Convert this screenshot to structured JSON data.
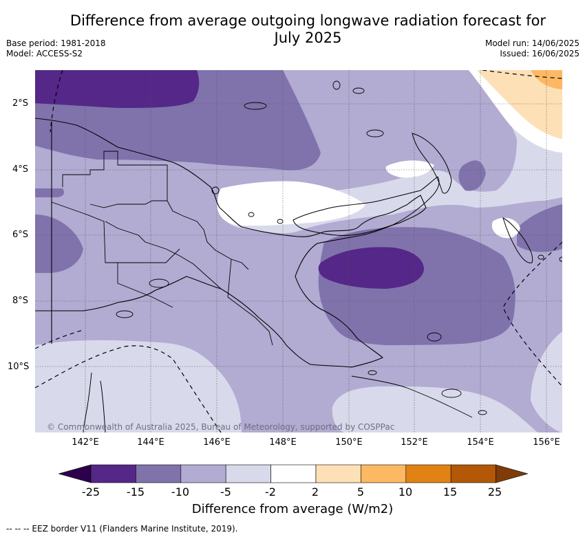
{
  "title_line1": "Difference from average outgoing longwave radiation forecast for",
  "title_line2": "July 2025",
  "base_period": "Base period: 1981-2018",
  "model": "Model: ACCESS-S2",
  "model_run": "Model run: 14/06/2025",
  "issued": "Issued: 16/06/2025",
  "copyright": "© Commonwealth of Australia 2025, Bureau of Meteorology, supported by COSPPac",
  "lat_labels": [
    "2°S",
    "4°S",
    "6°S",
    "8°S",
    "10°S"
  ],
  "lon_labels": [
    "142°E",
    "144°E",
    "146°E",
    "148°E",
    "150°E",
    "152°E",
    "154°E",
    "156°E"
  ],
  "colorbar": {
    "ticks": [
      "-25",
      "-15",
      "-10",
      "-5",
      "-2",
      "2",
      "5",
      "10",
      "15",
      "25"
    ],
    "colors": [
      "#2d004b",
      "#542788",
      "#8073ac",
      "#b2abd2",
      "#d8daeb",
      "#ffffff",
      "#fee0b6",
      "#fdb863",
      "#e08214",
      "#b35806",
      "#7f3b08"
    ],
    "label": "Difference from average (W/m2)"
  },
  "legend_footer": "--  --  -- EEZ border V11 (Flanders Marine Institute, 2019)."
}
